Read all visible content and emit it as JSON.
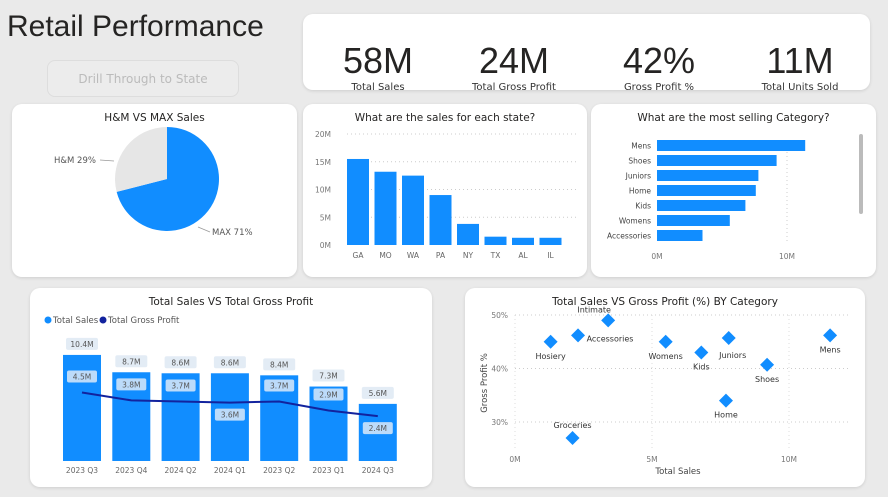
{
  "header": {
    "title": "Retail Performance",
    "drill_button": "Drill Through to State"
  },
  "kpis": [
    {
      "value": "58M",
      "label": "Total Sales"
    },
    {
      "value": "24M",
      "label": "Total Gross Profit"
    },
    {
      "value": "42%",
      "label": "Gross Profit %"
    },
    {
      "value": "11M",
      "label": "Total Units Sold"
    }
  ],
  "colors": {
    "accent": "#118DFF",
    "dark": "#12239E",
    "pie_other": "#E6E6E6"
  },
  "chart_data": [
    {
      "type": "pie",
      "title": "H&M VS MAX Sales",
      "slices": [
        {
          "label": "H&M 29%",
          "name": "H&M",
          "value": 29
        },
        {
          "label": "MAX 71%",
          "name": "MAX",
          "value": 71
        }
      ]
    },
    {
      "type": "bar",
      "title": "What are the sales for each state?",
      "categories": [
        "GA",
        "MO",
        "WA",
        "PA",
        "NY",
        "TX",
        "AL",
        "IL"
      ],
      "values": [
        15.5,
        13.2,
        12.5,
        9.0,
        3.8,
        1.5,
        1.3,
        1.3
      ],
      "unit": "M",
      "yticks": [
        "0M",
        "5M",
        "10M",
        "15M",
        "20M"
      ],
      "ylim": [
        0,
        20
      ],
      "grid": true
    },
    {
      "type": "bar",
      "orientation": "horizontal",
      "title": "What are the most selling Category?",
      "categories": [
        "Mens",
        "Shoes",
        "Juniors",
        "Home",
        "Kids",
        "Womens",
        "Accessories"
      ],
      "values": [
        11.4,
        9.2,
        7.8,
        7.6,
        6.8,
        5.6,
        3.5
      ],
      "xticks": [
        "0M",
        "10M"
      ],
      "xlim": [
        0,
        15
      ]
    },
    {
      "type": "bar+line",
      "title": "Total Sales VS Total Gross Profit",
      "categories": [
        "2023 Q3",
        "2023 Q4",
        "2024 Q2",
        "2024 Q1",
        "2023 Q2",
        "2023 Q1",
        "2024 Q3"
      ],
      "series": [
        {
          "name": "Total Sales",
          "values": [
            10.4,
            8.7,
            8.6,
            8.6,
            8.4,
            7.3,
            5.6
          ],
          "labels": [
            "10.4M",
            "8.7M",
            "8.6M",
            "8.6M",
            "8.4M",
            "7.3M",
            "5.6M"
          ]
        },
        {
          "name": "Total Gross Profit",
          "values": [
            4.5,
            3.8,
            3.7,
            3.6,
            3.7,
            2.9,
            2.4
          ],
          "labels": [
            "4.5M",
            "3.8M",
            "3.7M",
            "3.6M",
            "3.7M",
            "2.9M",
            "2.4M"
          ]
        }
      ],
      "legend": "top-left"
    },
    {
      "type": "scatter",
      "title": "Total Sales VS Gross Profit (%) BY Category",
      "xlabel": "Total Sales",
      "ylabel": "Gross Profit %",
      "xticks": [
        "0M",
        "5M",
        "10M"
      ],
      "yticks": [
        "30%",
        "40%",
        "50%"
      ],
      "xlim": [
        0,
        12.5
      ],
      "ylim": [
        25,
        50
      ],
      "points": [
        {
          "label": "Hosiery",
          "x": 1.3,
          "y": 45
        },
        {
          "label": "Accessories",
          "x": 2.3,
          "y": 46.2
        },
        {
          "label": "Intimate",
          "x": 3.4,
          "y": 49
        },
        {
          "label": "Groceries",
          "x": 2.1,
          "y": 27
        },
        {
          "label": "Womens",
          "x": 5.5,
          "y": 45
        },
        {
          "label": "Kids",
          "x": 6.8,
          "y": 43
        },
        {
          "label": "Juniors",
          "x": 7.8,
          "y": 45.7
        },
        {
          "label": "Home",
          "x": 7.7,
          "y": 34
        },
        {
          "label": "Shoes",
          "x": 9.2,
          "y": 40.7
        },
        {
          "label": "Mens",
          "x": 11.5,
          "y": 46.2
        }
      ]
    }
  ]
}
